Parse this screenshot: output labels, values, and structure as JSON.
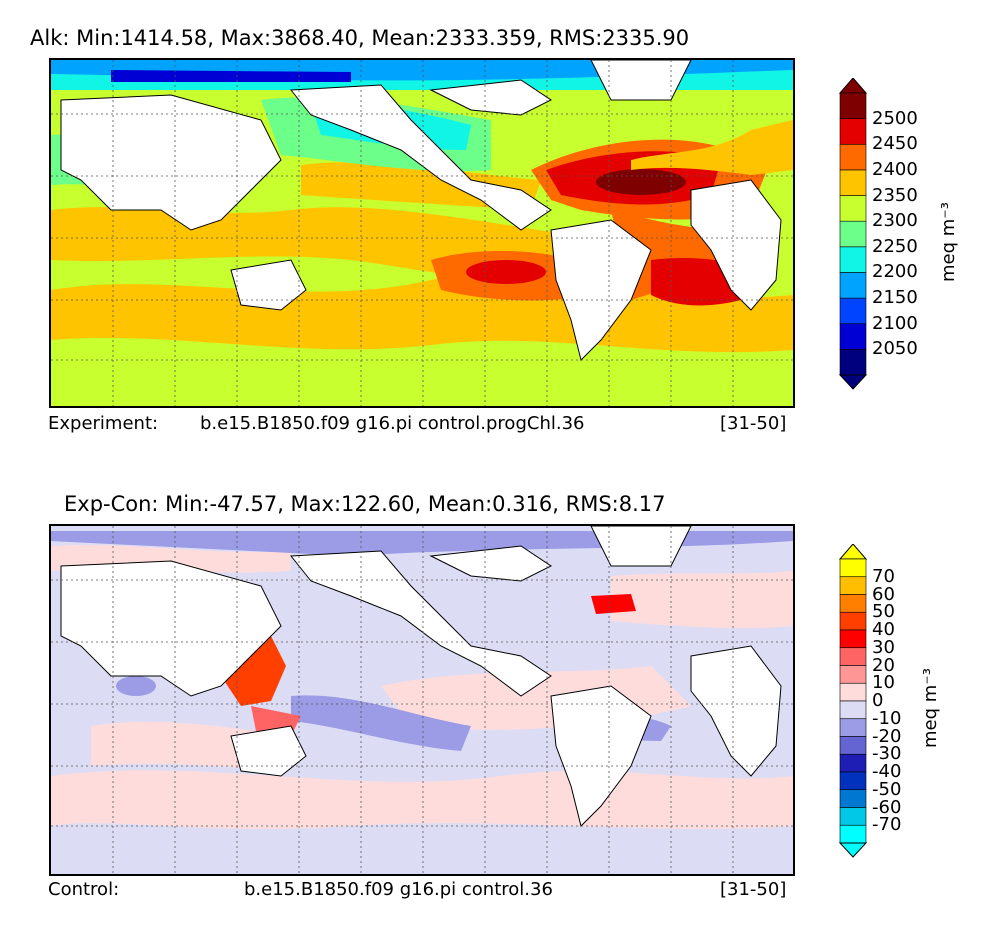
{
  "panels": [
    {
      "title": "Alk: Min:1414.58, Max:3868.40, Mean:2333.359, RMS:2335.90",
      "footer_label": "Experiment:",
      "footer_case": "b.e15.B1850.f09 g16.pi control.progChl.36",
      "footer_years": "[31-50]",
      "units": "meq m⁻³",
      "colorbar": {
        "levels": [
          "2050",
          "2100",
          "2150",
          "2200",
          "2250",
          "2300",
          "2350",
          "2400",
          "2450",
          "2500"
        ],
        "colors": [
          "#00007f",
          "#0000d4",
          "#0044ff",
          "#00a4ff",
          "#10f5e6",
          "#6cff8a",
          "#c8ff2e",
          "#ffc400",
          "#ff6a00",
          "#e40000",
          "#7f0000"
        ],
        "under_color": "#00007f",
        "over_color": "#7f0000"
      }
    },
    {
      "title": "Exp-Con: Min:-47.57, Max:122.60, Mean:0.316, RMS:8.17",
      "footer_label": "Control:",
      "footer_case": "b.e15.B1850.f09 g16.pi control.36",
      "footer_years": "[31-50]",
      "units": "meq m⁻³",
      "colorbar": {
        "levels": [
          "70",
          "60",
          "50",
          "40",
          "30",
          "20",
          "10",
          "0",
          "-10",
          "-20",
          "-30",
          "-40",
          "-50",
          "-60",
          "-70"
        ],
        "colors_top_to_bottom": [
          "#ffff00",
          "#ffbf00",
          "#ff7f00",
          "#ff3f00",
          "#ff0000",
          "#ff6464",
          "#ff9696",
          "#ffdcdc",
          "#dcdcf5",
          "#9b9be6",
          "#6464d2",
          "#1e1eb4",
          "#0032be",
          "#0078d2",
          "#00c8e6",
          "#00ffff"
        ],
        "under_color": "#00ffff",
        "over_color": "#ffff00"
      }
    }
  ]
}
